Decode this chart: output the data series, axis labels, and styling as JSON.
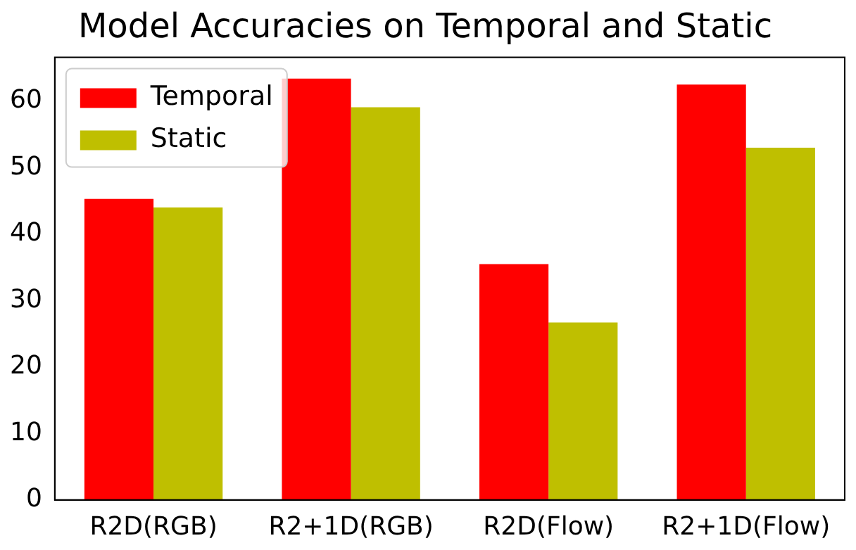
{
  "chart_data": {
    "type": "bar",
    "title": "Model Accuracies on Temporal and Static",
    "categories": [
      "R2D(RGB)",
      "R2+1D(RGB)",
      "R2D(Flow)",
      "R2+1D(Flow)"
    ],
    "series": [
      {
        "name": "Temporal",
        "color": "#ff0000",
        "values": [
          45.3,
          63.4,
          35.5,
          62.5
        ]
      },
      {
        "name": "Static",
        "color": "#bfbf00",
        "values": [
          44.0,
          59.1,
          26.7,
          53.0
        ]
      }
    ],
    "ylim": [
      0,
      66.6
    ],
    "yticks": [
      0,
      10,
      20,
      30,
      40,
      50,
      60
    ],
    "grid": false,
    "legend": "top left"
  }
}
